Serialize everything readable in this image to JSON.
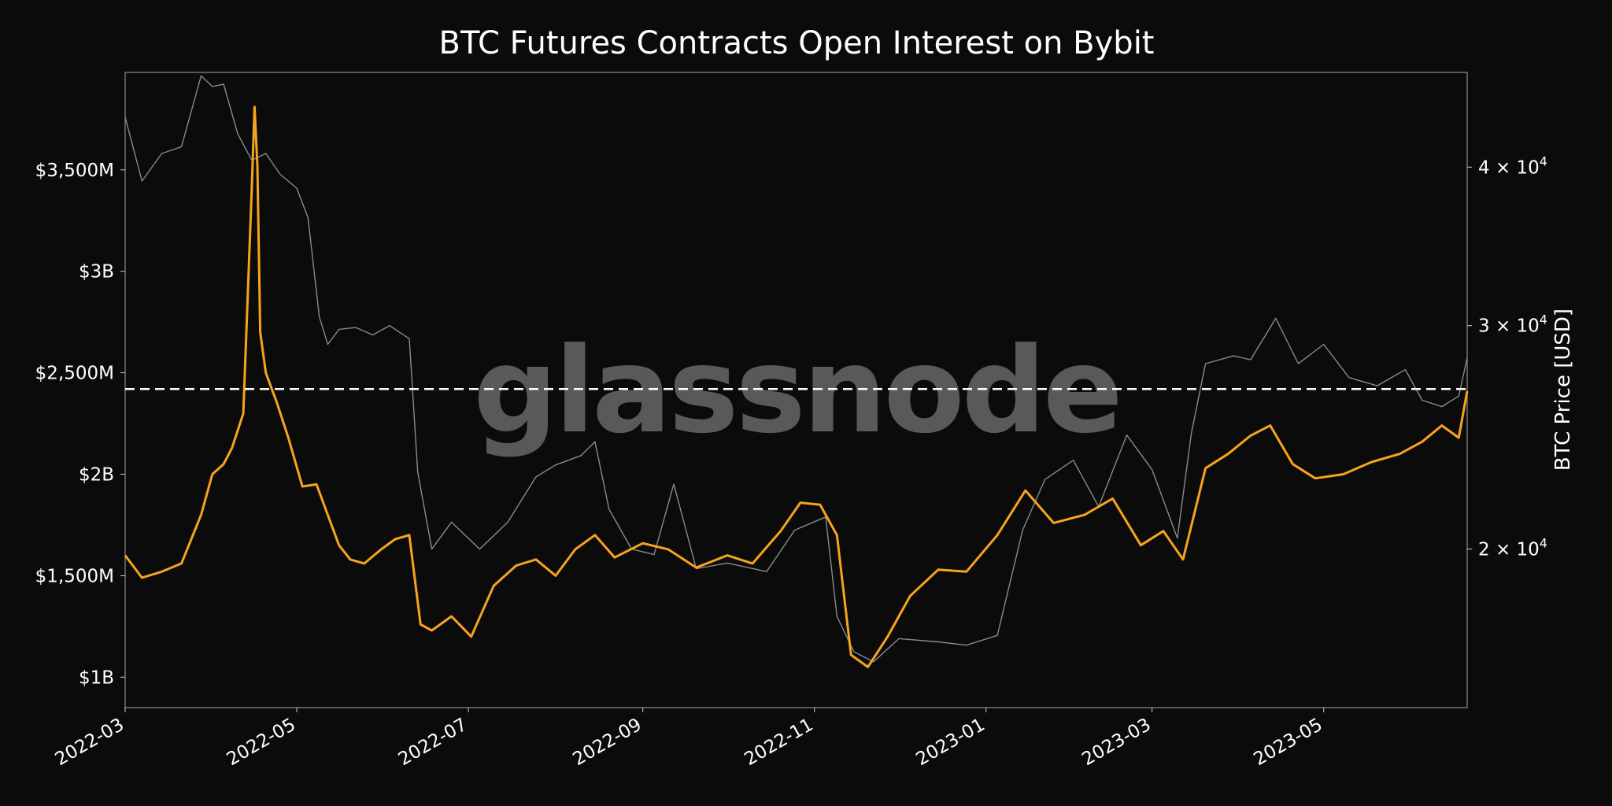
{
  "chart_data": {
    "type": "line",
    "title": "BTC Futures Contracts Open Interest on Bybit",
    "watermark": "glassnode",
    "xlabel": "",
    "ylabel_left": "",
    "ylabel_right": "BTC Price [USD]",
    "x_ticks": [
      "2022-03",
      "2022-05",
      "2022-07",
      "2022-09",
      "2022-11",
      "2023-01",
      "2023-03",
      "2023-05"
    ],
    "y_left_ticks": [
      {
        "value": 1000,
        "label": "$1B"
      },
      {
        "value": 1500,
        "label": "$1,500M"
      },
      {
        "value": 2000,
        "label": "$2B"
      },
      {
        "value": 2500,
        "label": "$2,500M"
      },
      {
        "value": 3000,
        "label": "$3B"
      },
      {
        "value": 3500,
        "label": "$3,500M"
      }
    ],
    "y_left_range": [
      850,
      3980
    ],
    "y_right_scale": "log",
    "y_right_range": [
      15000,
      47500
    ],
    "y_right_ticks": [
      {
        "value": 20000,
        "label_base": "2 × 10",
        "label_exp": "4"
      },
      {
        "value": 30000,
        "label_base": "3 × 10",
        "label_exp": "4"
      },
      {
        "value": 40000,
        "label_base": "4 × 10",
        "label_exp": "4"
      }
    ],
    "reference_line": {
      "value": 2420,
      "axis": "left",
      "style": "dashed"
    },
    "x_range": [
      "2022-03-01",
      "2023-06-21"
    ],
    "series": [
      {
        "axis": "left",
        "color": "#f7a41d",
        "x": [
          "2022-03-01",
          "2022-03-07",
          "2022-03-14",
          "2022-03-21",
          "2022-03-28",
          "2022-04-01",
          "2022-04-05",
          "2022-04-08",
          "2022-04-12",
          "2022-04-15",
          "2022-04-16",
          "2022-04-17",
          "2022-04-18",
          "2022-04-20",
          "2022-04-24",
          "2022-04-28",
          "2022-05-03",
          "2022-05-08",
          "2022-05-12",
          "2022-05-16",
          "2022-05-20",
          "2022-05-25",
          "2022-05-31",
          "2022-06-05",
          "2022-06-10",
          "2022-06-14",
          "2022-06-18",
          "2022-06-25",
          "2022-07-02",
          "2022-07-10",
          "2022-07-18",
          "2022-07-25",
          "2022-08-01",
          "2022-08-08",
          "2022-08-15",
          "2022-08-22",
          "2022-09-01",
          "2022-09-10",
          "2022-09-20",
          "2022-10-01",
          "2022-10-10",
          "2022-10-20",
          "2022-10-27",
          "2022-11-03",
          "2022-11-09",
          "2022-11-14",
          "2022-11-20",
          "2022-11-27",
          "2022-12-05",
          "2022-12-15",
          "2022-12-25",
          "2023-01-05",
          "2023-01-15",
          "2023-01-25",
          "2023-02-05",
          "2023-02-15",
          "2023-02-25",
          "2023-03-05",
          "2023-03-12",
          "2023-03-20",
          "2023-03-28",
          "2023-04-05",
          "2023-04-12",
          "2023-04-20",
          "2023-04-28",
          "2023-05-08",
          "2023-05-18",
          "2023-05-28",
          "2023-06-05",
          "2023-06-12",
          "2023-06-18",
          "2023-06-21"
        ],
        "values": [
          1600,
          1490,
          1520,
          1560,
          1800,
          2000,
          2050,
          2130,
          2300,
          3400,
          3810,
          3520,
          2700,
          2500,
          2350,
          2180,
          1940,
          1950,
          1800,
          1650,
          1580,
          1560,
          1630,
          1680,
          1700,
          1260,
          1230,
          1300,
          1200,
          1450,
          1550,
          1580,
          1500,
          1630,
          1700,
          1590,
          1660,
          1630,
          1540,
          1600,
          1560,
          1720,
          1860,
          1850,
          1700,
          1110,
          1050,
          1200,
          1400,
          1530,
          1520,
          1700,
          1920,
          1760,
          1800,
          1880,
          1650,
          1720,
          1580,
          2030,
          2100,
          2190,
          2240,
          2050,
          1980,
          2000,
          2060,
          2100,
          2160,
          2240,
          2180,
          2410
        ]
      },
      {
        "axis": "right",
        "color": "#8a8a8a",
        "x": [
          "2022-03-01",
          "2022-03-07",
          "2022-03-14",
          "2022-03-21",
          "2022-03-28",
          "2022-04-01",
          "2022-04-05",
          "2022-04-10",
          "2022-04-15",
          "2022-04-20",
          "2022-04-25",
          "2022-05-01",
          "2022-05-05",
          "2022-05-09",
          "2022-05-12",
          "2022-05-16",
          "2022-05-22",
          "2022-05-28",
          "2022-06-03",
          "2022-06-10",
          "2022-06-13",
          "2022-06-18",
          "2022-06-25",
          "2022-07-05",
          "2022-07-15",
          "2022-07-25",
          "2022-08-01",
          "2022-08-10",
          "2022-08-15",
          "2022-08-20",
          "2022-08-28",
          "2022-09-05",
          "2022-09-12",
          "2022-09-20",
          "2022-10-01",
          "2022-10-15",
          "2022-10-25",
          "2022-11-05",
          "2022-11-09",
          "2022-11-15",
          "2022-11-22",
          "2022-12-01",
          "2022-12-15",
          "2022-12-25",
          "2023-01-05",
          "2023-01-14",
          "2023-01-22",
          "2023-02-01",
          "2023-02-10",
          "2023-02-20",
          "2023-03-01",
          "2023-03-10",
          "2023-03-15",
          "2023-03-20",
          "2023-03-30",
          "2023-04-05",
          "2023-04-14",
          "2023-04-22",
          "2023-05-01",
          "2023-05-10",
          "2023-05-20",
          "2023-05-30",
          "2023-06-05",
          "2023-06-12",
          "2023-06-18",
          "2023-06-21"
        ],
        "values": [
          43800,
          39000,
          41000,
          41500,
          47200,
          46300,
          46500,
          42500,
          40500,
          41000,
          39500,
          38500,
          36500,
          30500,
          29000,
          29800,
          29900,
          29500,
          30000,
          29300,
          23000,
          20000,
          21000,
          20000,
          21000,
          22800,
          23300,
          23700,
          24300,
          21500,
          20000,
          19800,
          22500,
          19300,
          19500,
          19200,
          20700,
          21200,
          17700,
          16600,
          16300,
          17000,
          16900,
          16800,
          17100,
          20700,
          22700,
          23500,
          21600,
          24600,
          23100,
          20400,
          24700,
          28000,
          28400,
          28200,
          30400,
          28000,
          29000,
          27300,
          26900,
          27700,
          26200,
          25900,
          26400,
          28300
        ]
      }
    ]
  }
}
